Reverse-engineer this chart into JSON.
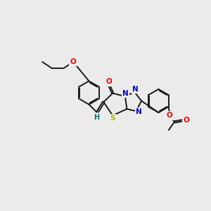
{
  "bg": "#ebebeb",
  "bc": "#1a1a1a",
  "lw": 1.4,
  "O_color": "#ff0000",
  "N_color": "#0000dd",
  "S_color": "#b8b800",
  "H_color": "#007070",
  "fs": 7.5,
  "dpi": 100,
  "xlim": [
    0,
    10
  ],
  "ylim": [
    0,
    10
  ]
}
